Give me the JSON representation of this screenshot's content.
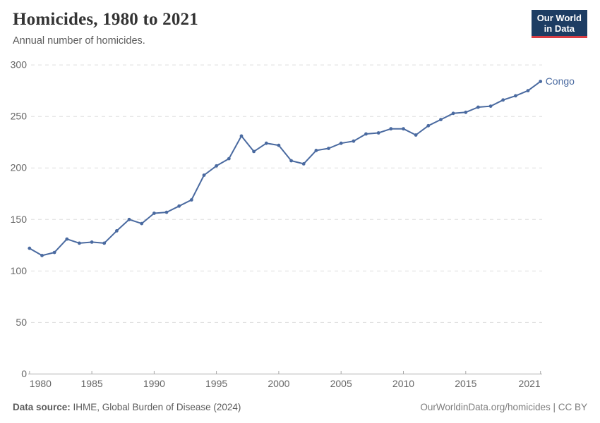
{
  "header": {
    "title": "Homicides, 1980 to 2021",
    "subtitle": "Annual number of homicides.",
    "logo": {
      "line1": "Our World",
      "line2": "in Data"
    }
  },
  "chart_data": {
    "type": "line",
    "title": "Homicides, 1980 to 2021",
    "xlabel": "",
    "ylabel": "Annual number of homicides",
    "xlim": [
      1980,
      2021
    ],
    "ylim": [
      0,
      300
    ],
    "x_ticks": [
      1980,
      1985,
      1990,
      1995,
      2000,
      2005,
      2010,
      2015,
      2021
    ],
    "y_ticks": [
      0,
      50,
      100,
      150,
      200,
      250,
      300
    ],
    "grid": true,
    "legend_position": "end-of-line",
    "series": [
      {
        "name": "Congo",
        "color": "#4a6aa0",
        "x": [
          1980,
          1981,
          1982,
          1983,
          1984,
          1985,
          1986,
          1987,
          1988,
          1989,
          1990,
          1991,
          1992,
          1993,
          1994,
          1995,
          1996,
          1997,
          1998,
          1999,
          2000,
          2001,
          2002,
          2003,
          2004,
          2005,
          2006,
          2007,
          2008,
          2009,
          2010,
          2011,
          2012,
          2013,
          2014,
          2015,
          2016,
          2017,
          2018,
          2019,
          2020,
          2021
        ],
        "values": [
          122,
          115,
          118,
          131,
          127,
          128,
          127,
          139,
          150,
          146,
          156,
          157,
          163,
          169,
          193,
          202,
          209,
          231,
          216,
          224,
          222,
          207,
          204,
          217,
          219,
          224,
          226,
          233,
          234,
          238,
          238,
          232,
          241,
          247,
          253,
          254,
          259,
          260,
          266,
          270,
          275,
          284
        ]
      }
    ]
  },
  "footer": {
    "data_source_label": "Data source:",
    "data_source_value": " IHME, Global Burden of Disease (2024)",
    "attribution": "OurWorldinData.org/homicides | CC BY"
  },
  "colors": {
    "line": "#4a6aa0",
    "gridline": "#dddddd",
    "axis": "#a8a8a8",
    "tick_text": "#666666",
    "logo_bg": "#1d3d63",
    "logo_accent": "#d93d43"
  }
}
